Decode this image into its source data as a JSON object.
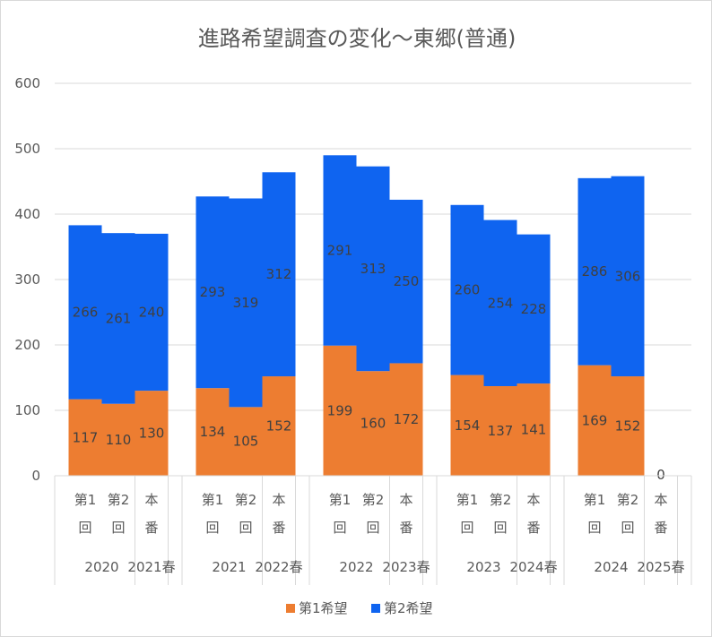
{
  "chart_data": {
    "type": "bar",
    "stacked": true,
    "title": "進路希望調査の変化～東郷(普通)",
    "ylim": [
      0,
      600
    ],
    "yticks": [
      0,
      100,
      200,
      300,
      400,
      500,
      600
    ],
    "grid": true,
    "legend_position": "bottom",
    "groups": [
      {
        "year": "2020",
        "spring": "2021春"
      },
      {
        "year": "2021",
        "spring": "2022春"
      },
      {
        "year": "2022",
        "spring": "2023春"
      },
      {
        "year": "2023",
        "spring": "2024春"
      },
      {
        "year": "2024",
        "spring": "2025春"
      }
    ],
    "categories": [
      [
        "第1",
        "回"
      ],
      [
        "第2",
        "回"
      ],
      [
        "本",
        "番"
      ],
      [
        "第1",
        "回"
      ],
      [
        "第2",
        "回"
      ],
      [
        "本",
        "番"
      ],
      [
        "第1",
        "回"
      ],
      [
        "第2",
        "回"
      ],
      [
        "本",
        "番"
      ],
      [
        "第1",
        "回"
      ],
      [
        "第2",
        "回"
      ],
      [
        "本",
        "番"
      ],
      [
        "第1",
        "回"
      ],
      [
        "第2",
        "回"
      ],
      [
        "本",
        "番"
      ]
    ],
    "series": [
      {
        "name": "第1希望",
        "color": "#ed7d31",
        "values": [
          117,
          110,
          130,
          134,
          105,
          152,
          199,
          160,
          172,
          154,
          137,
          141,
          169,
          152,
          0
        ]
      },
      {
        "name": "第2希望",
        "color": "#0f64f0",
        "values": [
          266,
          261,
          240,
          293,
          319,
          312,
          291,
          313,
          250,
          260,
          254,
          228,
          286,
          306,
          0
        ]
      }
    ]
  }
}
